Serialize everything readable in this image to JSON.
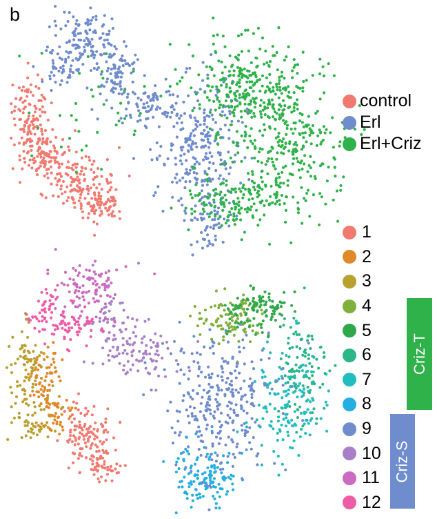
{
  "panel_label": "b",
  "legend_condition": [
    {
      "label": "control",
      "color": "#f07a70"
    },
    {
      "label": "Erl",
      "color": "#6f8ccd"
    },
    {
      "label": "Erl+Criz",
      "color": "#2fb24a"
    }
  ],
  "legend_cluster": [
    {
      "label": "1",
      "color": "#f07a70"
    },
    {
      "label": "2",
      "color": "#e0892a"
    },
    {
      "label": "3",
      "color": "#b9a130"
    },
    {
      "label": "4",
      "color": "#7fb03c"
    },
    {
      "label": "5",
      "color": "#2fa84a"
    },
    {
      "label": "6",
      "color": "#2db58a"
    },
    {
      "label": "7",
      "color": "#22bdbd"
    },
    {
      "label": "8",
      "color": "#25aee0"
    },
    {
      "label": "9",
      "color": "#6f8ccd"
    },
    {
      "label": "10",
      "color": "#a880c8"
    },
    {
      "label": "11",
      "color": "#cc6cc0"
    },
    {
      "label": "12",
      "color": "#ee5ca6"
    }
  ],
  "tags": {
    "criz_t": {
      "label": "Criz-T",
      "color": "#2fb24a"
    },
    "criz_s": {
      "label": "Criz-S",
      "color": "#6f8ccd"
    }
  },
  "chart_data": [
    {
      "type": "scatter",
      "title": "",
      "xlabel": "",
      "ylabel": "",
      "grid": false,
      "legend": "right",
      "color_by": "condition",
      "groups": [
        "control",
        "Erl",
        "Erl+Criz"
      ]
    },
    {
      "type": "scatter",
      "title": "",
      "xlabel": "",
      "ylabel": "",
      "grid": false,
      "legend": "right",
      "color_by": "cluster",
      "groups": [
        "1",
        "2",
        "3",
        "4",
        "5",
        "6",
        "7",
        "8",
        "9",
        "10",
        "11",
        "12"
      ]
    }
  ]
}
